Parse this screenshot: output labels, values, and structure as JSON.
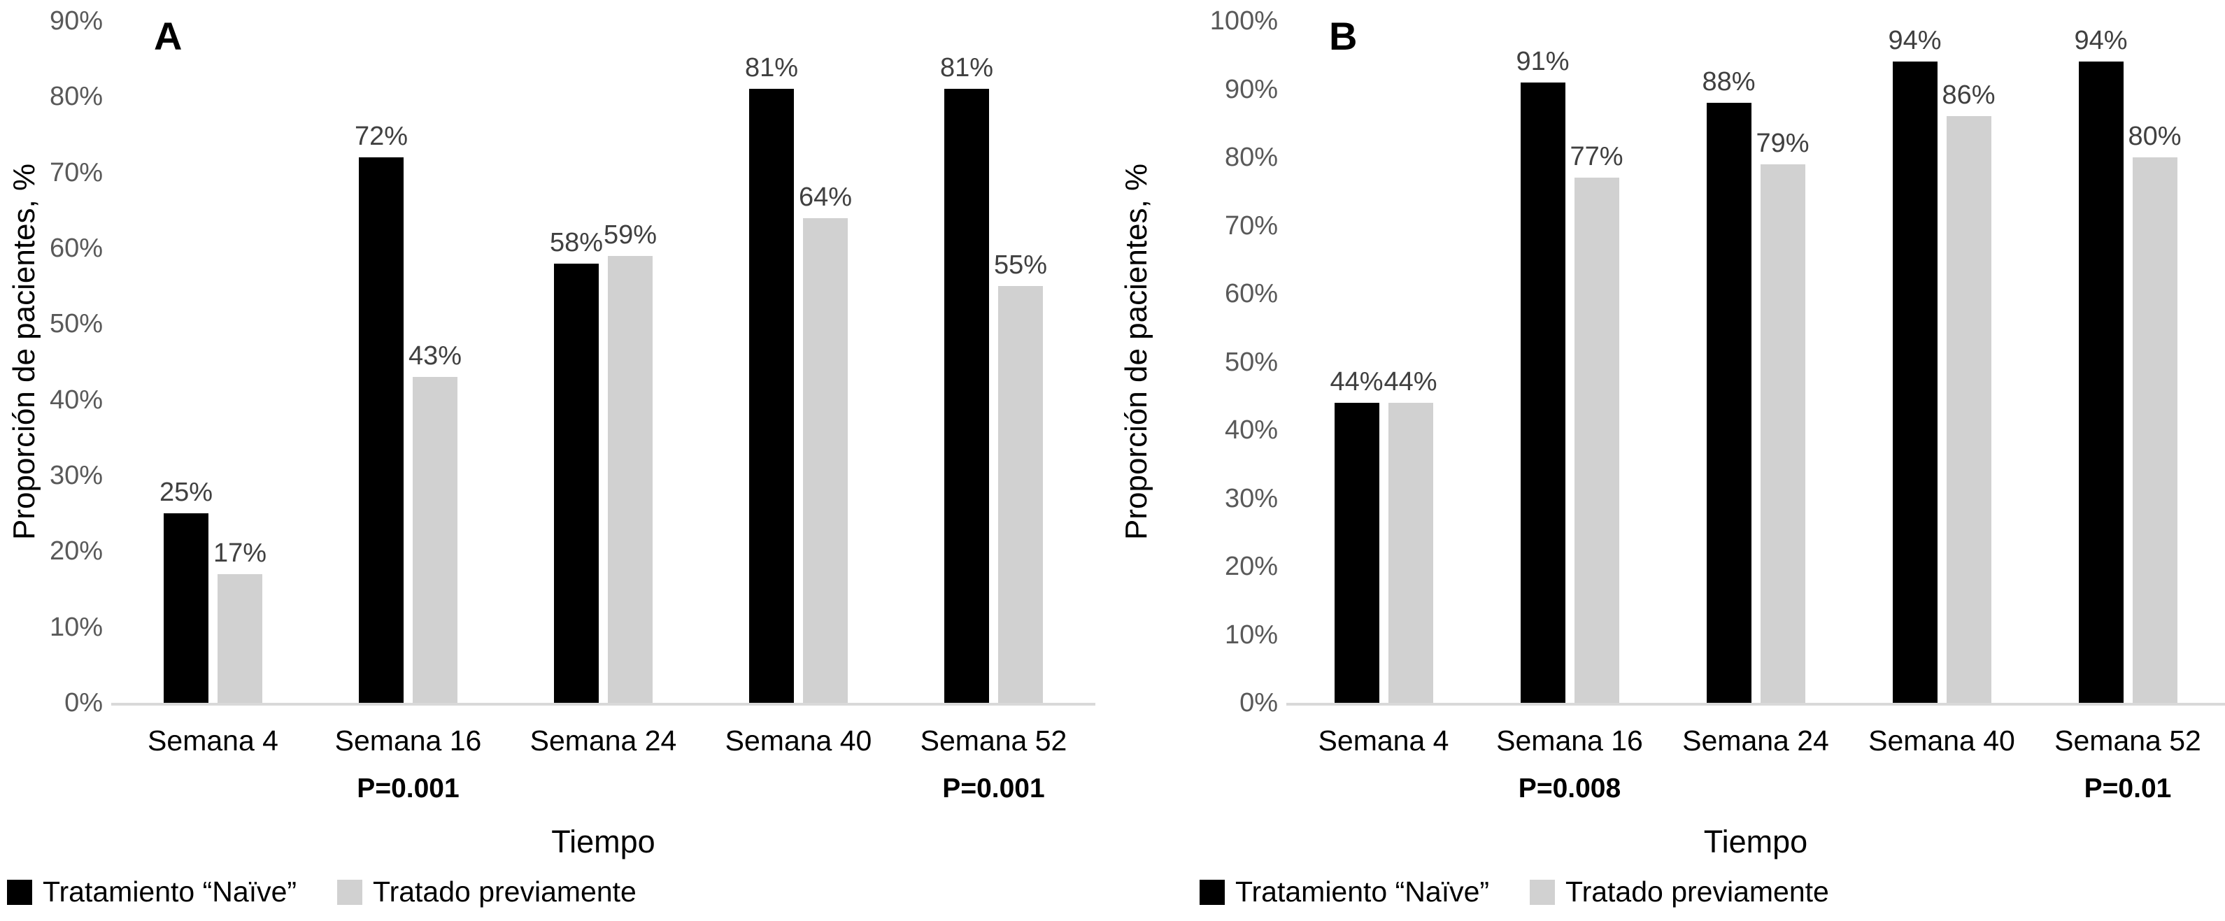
{
  "figure": {
    "background": "#ffffff"
  },
  "colors": {
    "naive_bar": "#000000",
    "pretreated_bar": "#d1d1d1",
    "axis_line": "#d9d9d9",
    "tick_text": "#595959",
    "value_text": "#404040",
    "label_text": "#000000"
  },
  "chart_data": [
    {
      "type": "bar",
      "panel_label": "A",
      "ylabel": "Proporción de pacientes, %",
      "xlabel": "Tiempo",
      "ylim": [
        0,
        90
      ],
      "ytick_step": 10,
      "ytick_suffix": "%",
      "value_suffix": "%",
      "grid": false,
      "legend_position": "bottom-left",
      "categories": [
        "Semana 4",
        "Semana 16",
        "Semana 24",
        "Semana 40",
        "Semana 52"
      ],
      "series": [
        {
          "name": "Tratamiento “Naïve”",
          "color_key": "naive_bar",
          "values": [
            25,
            72,
            58,
            81,
            81
          ]
        },
        {
          "name": "Tratado previamente",
          "color_key": "pretreated_bar",
          "values": [
            17,
            43,
            59,
            64,
            55
          ]
        }
      ],
      "p_values": [
        {
          "category_index": 1,
          "label": "P=0.001"
        },
        {
          "category_index": 4,
          "label": "P=0.001"
        }
      ]
    },
    {
      "type": "bar",
      "panel_label": "B",
      "ylabel": "Proporción de pacientes, %",
      "xlabel": "Tiempo",
      "ylim": [
        0,
        100
      ],
      "ytick_step": 10,
      "ytick_suffix": "%",
      "value_suffix": "%",
      "grid": false,
      "legend_position": "bottom-left",
      "categories": [
        "Semana 4",
        "Semana 16",
        "Semana 24",
        "Semana 40",
        "Semana 52"
      ],
      "series": [
        {
          "name": "Tratamiento “Naïve”",
          "color_key": "naive_bar",
          "values": [
            44,
            91,
            88,
            94,
            94
          ]
        },
        {
          "name": "Tratado previamente",
          "color_key": "pretreated_bar",
          "values": [
            44,
            77,
            79,
            86,
            80
          ]
        }
      ],
      "p_values": [
        {
          "category_index": 1,
          "label": "P=0.008"
        },
        {
          "category_index": 4,
          "label": "P=0.01"
        }
      ]
    }
  ]
}
